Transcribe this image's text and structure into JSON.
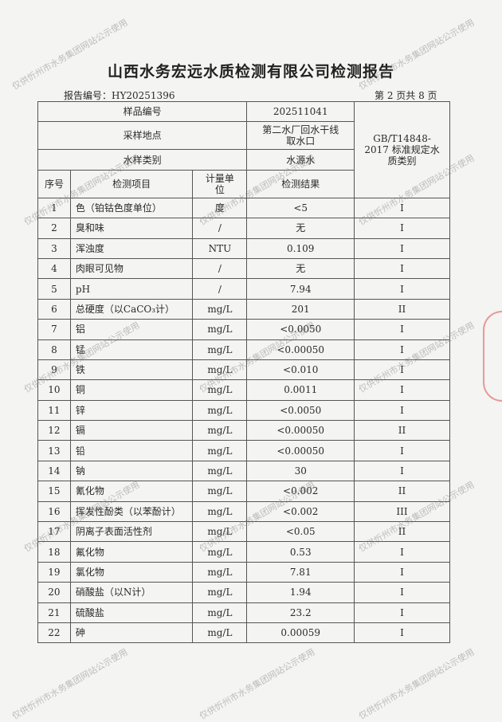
{
  "title": "山西水务宏远水质检测有限公司检测报告",
  "report_no": "报告编号：HY20251396",
  "page_info": "第 2 页共 8 页",
  "header": {
    "sample_no_label": "样品编号",
    "sample_no": "202511041",
    "location_label": "采样地点",
    "location": "第二水厂回水干线取水口",
    "type_label": "水样类别",
    "type": "水源水",
    "standard": "GB/T14848-2017 标准规定水质类别",
    "col_no": "序号",
    "col_item": "检测项目",
    "col_unit": "计量单位",
    "col_result": "检测结果"
  },
  "rows": [
    {
      "no": "1",
      "item": "色（铂钴色度单位）",
      "unit": "度",
      "result": "<5",
      "class": "I"
    },
    {
      "no": "2",
      "item": "臭和味",
      "unit": "/",
      "result": "无",
      "class": "I"
    },
    {
      "no": "3",
      "item": "浑浊度",
      "unit": "NTU",
      "result": "0.109",
      "class": "I"
    },
    {
      "no": "4",
      "item": "肉眼可见物",
      "unit": "/",
      "result": "无",
      "class": "I"
    },
    {
      "no": "5",
      "item": "pH",
      "unit": "/",
      "result": "7.94",
      "class": "I"
    },
    {
      "no": "6",
      "item": "总硬度（以CaCO₃计）",
      "unit": "mg/L",
      "result": "201",
      "class": "II"
    },
    {
      "no": "7",
      "item": "铝",
      "unit": "mg/L",
      "result": "<0.0050",
      "class": "I"
    },
    {
      "no": "8",
      "item": "锰",
      "unit": "mg/L",
      "result": "<0.00050",
      "class": "I"
    },
    {
      "no": "9",
      "item": "铁",
      "unit": "mg/L",
      "result": "<0.010",
      "class": "I"
    },
    {
      "no": "10",
      "item": "铜",
      "unit": "mg/L",
      "result": "0.0011",
      "class": "I"
    },
    {
      "no": "11",
      "item": "锌",
      "unit": "mg/L",
      "result": "<0.0050",
      "class": "I"
    },
    {
      "no": "12",
      "item": "镉",
      "unit": "mg/L",
      "result": "<0.00050",
      "class": "II"
    },
    {
      "no": "13",
      "item": "铅",
      "unit": "mg/L",
      "result": "<0.00050",
      "class": "I"
    },
    {
      "no": "14",
      "item": "钠",
      "unit": "mg/L",
      "result": "30",
      "class": "I"
    },
    {
      "no": "15",
      "item": "氰化物",
      "unit": "mg/L",
      "result": "<0.002",
      "class": "II"
    },
    {
      "no": "16",
      "item": "挥发性酚类（以苯酚计）",
      "unit": "mg/L",
      "result": "<0.002",
      "class": "III"
    },
    {
      "no": "17",
      "item": "阴离子表面活性剂",
      "unit": "mg/L",
      "result": "<0.05",
      "class": "II"
    },
    {
      "no": "18",
      "item": "氟化物",
      "unit": "mg/L",
      "result": "0.53",
      "class": "I"
    },
    {
      "no": "19",
      "item": "氯化物",
      "unit": "mg/L",
      "result": "7.81",
      "class": "I"
    },
    {
      "no": "20",
      "item": "硝酸盐（以N计）",
      "unit": "mg/L",
      "result": "1.94",
      "class": "I"
    },
    {
      "no": "21",
      "item": "硫酸盐",
      "unit": "mg/L",
      "result": "23.2",
      "class": "I"
    },
    {
      "no": "22",
      "item": "砷",
      "unit": "mg/L",
      "result": "0.00059",
      "class": "I"
    }
  ],
  "watermark": "仅供忻州市水务集团网站公示使用"
}
